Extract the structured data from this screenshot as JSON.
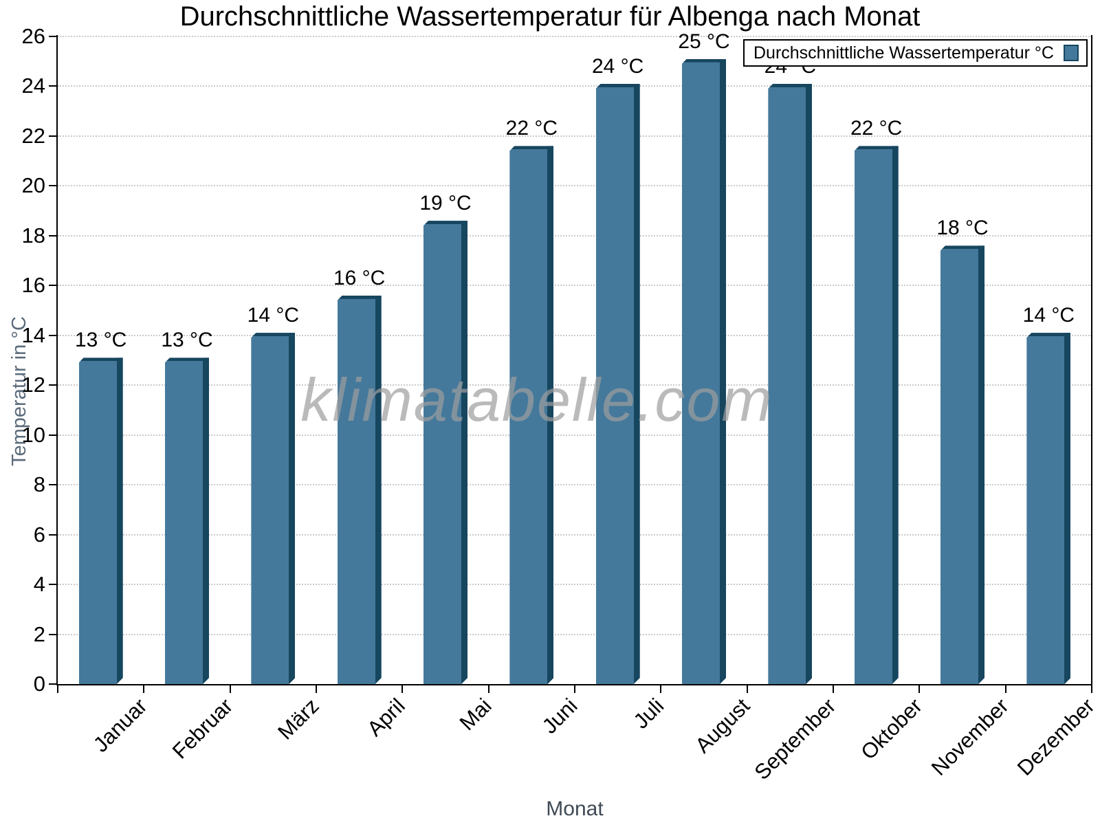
{
  "title": "Durchschnittliche Wassertemperatur für Albenga nach Monat",
  "watermark": "klimatabelle.com",
  "chart_data": {
    "type": "bar",
    "title": "Durchschnittliche Wassertemperatur für Albenga nach Monat",
    "xlabel": "Monat",
    "ylabel": "Temperatur in °C",
    "categories": [
      "Januar",
      "Februar",
      "März",
      "April",
      "Mai",
      "Juni",
      "Juli",
      "August",
      "September",
      "Oktober",
      "November",
      "Dezember"
    ],
    "values": [
      13.1,
      13.1,
      14.1,
      15.6,
      18.6,
      21.6,
      24.1,
      25.1,
      24.1,
      21.6,
      17.6,
      14.1
    ],
    "bar_labels": [
      "13 °C",
      "13 °C",
      "14 °C",
      "16 °C",
      "19 °C",
      "22 °C",
      "24 °C",
      "25 °C",
      "24 °C",
      "22 °C",
      "18 °C",
      "14 °C"
    ],
    "ylim": [
      0,
      26
    ],
    "ytick_step": 2,
    "grid": "horizontal-dotted",
    "legend": [
      "Durchschnittliche Wassertemperatur °C"
    ],
    "legend_position": "top-right",
    "colors": {
      "bar_face": "#45799b",
      "bar_edge": "#17465f",
      "grid": "#c9c9c9",
      "axis": "#000000",
      "axis_title": "#5b6b7b",
      "watermark": "#9e9e9e"
    }
  }
}
